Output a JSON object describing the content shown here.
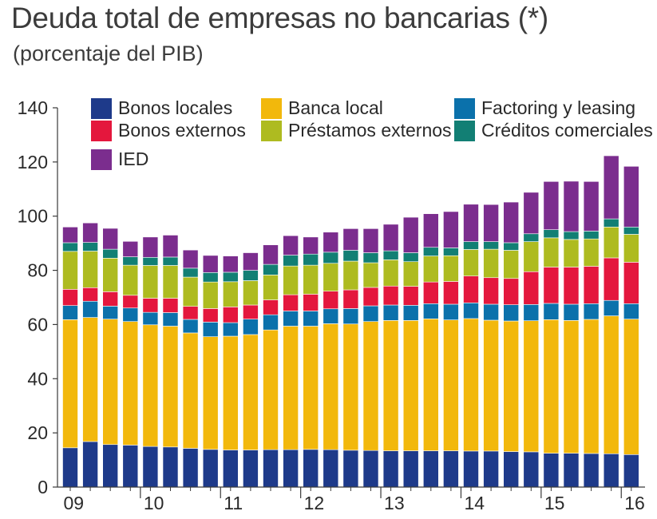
{
  "title": "Deuda total de empresas no bancarias (*)",
  "subtitle": "(porcentaje del PIB)",
  "chart_data": {
    "type": "bar",
    "stacked": true,
    "title": "Deuda total de empresas no bancarias (*)",
    "subtitle": "(porcentaje del PIB)",
    "xlabel": "",
    "ylabel": "",
    "ylim": [
      0,
      140
    ],
    "yticks": [
      0,
      20,
      40,
      60,
      80,
      100,
      120,
      140
    ],
    "grid": false,
    "legend_position": "top",
    "xtick_labels": [
      "09",
      "10",
      "11",
      "12",
      "13",
      "14",
      "15",
      "16"
    ],
    "categories": [
      "2009Q1",
      "2009Q2",
      "2009Q3",
      "2009Q4",
      "2010Q1",
      "2010Q2",
      "2010Q3",
      "2010Q4",
      "2011Q1",
      "2011Q2",
      "2011Q3",
      "2011Q4",
      "2012Q1",
      "2012Q2",
      "2012Q3",
      "2012Q4",
      "2013Q1",
      "2013Q2",
      "2013Q3",
      "2013Q4",
      "2014Q1",
      "2014Q2",
      "2014Q3",
      "2014Q4",
      "2015Q1",
      "2015Q2",
      "2015Q3",
      "2015Q4",
      "2016Q1"
    ],
    "series": [
      {
        "name": "Bonos locales",
        "color": "#1e3a8a",
        "values": [
          14.5,
          16.8,
          15.7,
          15.5,
          15.0,
          14.8,
          14.3,
          13.9,
          13.7,
          13.7,
          13.8,
          13.8,
          13.9,
          13.8,
          13.6,
          13.5,
          13.4,
          13.4,
          13.4,
          13.4,
          13.3,
          13.3,
          13.1,
          13.0,
          12.5,
          12.5,
          12.4,
          12.3,
          12.0
        ]
      },
      {
        "name": "Banca local",
        "color": "#f2b80c",
        "values": [
          47.3,
          45.8,
          46.3,
          45.6,
          44.9,
          44.6,
          42.6,
          41.6,
          42.0,
          42.6,
          44.2,
          45.6,
          45.5,
          46.5,
          46.6,
          47.6,
          48.1,
          48.1,
          48.7,
          48.3,
          48.9,
          48.3,
          48.2,
          48.4,
          49.3,
          49.0,
          49.5,
          50.9,
          50.0
        ]
      },
      {
        "name": "Factoring y leasing",
        "color": "#0b71ab",
        "values": [
          5.2,
          6.0,
          4.8,
          5.0,
          4.6,
          5.0,
          5.0,
          5.4,
          5.0,
          5.7,
          5.6,
          5.6,
          5.6,
          5.5,
          5.7,
          5.8,
          5.7,
          5.6,
          5.6,
          5.8,
          5.8,
          5.9,
          6.0,
          6.0,
          6.0,
          6.0,
          5.8,
          5.7,
          5.7
        ]
      },
      {
        "name": "Bonos externos",
        "color": "#e4173d",
        "values": [
          6.0,
          5.0,
          5.3,
          4.7,
          5.2,
          5.3,
          4.8,
          5.0,
          5.8,
          5.2,
          5.5,
          6.0,
          6.2,
          6.5,
          6.9,
          6.8,
          7.0,
          7.0,
          8.0,
          8.4,
          9.9,
          9.8,
          9.7,
          12.1,
          13.4,
          13.7,
          13.8,
          15.7,
          15.3
        ]
      },
      {
        "name": "Préstamos externos",
        "color": "#aebb20",
        "values": [
          14.0,
          13.5,
          12.4,
          11.1,
          12.1,
          12.1,
          10.8,
          9.8,
          9.3,
          9.0,
          9.2,
          10.6,
          10.7,
          10.3,
          10.6,
          9.1,
          9.7,
          9.1,
          9.6,
          9.5,
          9.8,
          10.5,
          10.4,
          11.1,
          10.8,
          10.2,
          10.1,
          11.4,
          10.3
        ]
      },
      {
        "name": "Créditos comerciales",
        "color": "#127f74",
        "values": [
          3.2,
          3.2,
          3.3,
          3.1,
          3.0,
          3.1,
          3.3,
          3.5,
          3.5,
          3.8,
          3.9,
          4.0,
          4.1,
          4.1,
          4.0,
          3.7,
          3.3,
          3.3,
          3.2,
          2.9,
          2.9,
          2.8,
          2.8,
          2.9,
          3.0,
          2.9,
          2.9,
          3.0,
          2.7
        ]
      },
      {
        "name": "IED",
        "color": "#7b2d8e",
        "values": [
          5.8,
          7.2,
          7.7,
          5.7,
          7.5,
          8.1,
          6.7,
          6.3,
          6.0,
          6.5,
          7.2,
          7.2,
          6.3,
          7.4,
          8.0,
          8.9,
          9.8,
          13.1,
          12.4,
          13.4,
          13.8,
          13.7,
          15.0,
          15.3,
          17.8,
          18.6,
          18.3,
          23.3,
          22.4
        ]
      }
    ]
  }
}
